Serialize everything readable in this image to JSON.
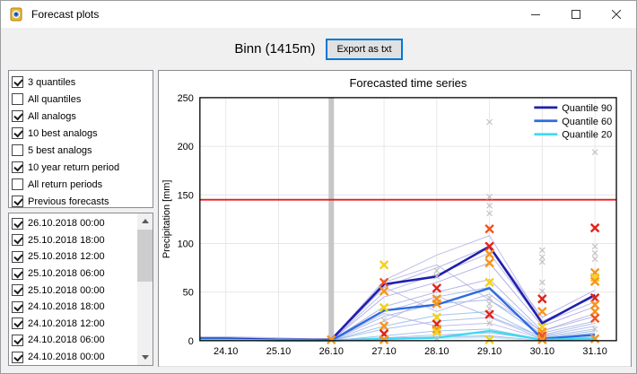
{
  "window": {
    "title": "Forecast plots"
  },
  "header": {
    "station": "Binn (1415m)",
    "export_label": "Export as txt"
  },
  "options": {
    "items": [
      {
        "label": "3 quantiles",
        "checked": true
      },
      {
        "label": "All quantiles",
        "checked": false
      },
      {
        "label": "All analogs",
        "checked": true
      },
      {
        "label": "10 best analogs",
        "checked": true
      },
      {
        "label": "5 best analogs",
        "checked": false
      },
      {
        "label": "10 year return period",
        "checked": true
      },
      {
        "label": "All return periods",
        "checked": false
      },
      {
        "label": "Previous forecasts",
        "checked": true
      }
    ]
  },
  "forecast_dates": {
    "items": [
      {
        "label": "26.10.2018 00:00",
        "checked": true
      },
      {
        "label": "25.10.2018 18:00",
        "checked": true
      },
      {
        "label": "25.10.2018 12:00",
        "checked": true
      },
      {
        "label": "25.10.2018 06:00",
        "checked": true
      },
      {
        "label": "25.10.2018 00:00",
        "checked": true
      },
      {
        "label": "24.10.2018 18:00",
        "checked": true
      },
      {
        "label": "24.10.2018 12:00",
        "checked": true
      },
      {
        "label": "24.10.2018 06:00",
        "checked": true
      },
      {
        "label": "24.10.2018 00:00",
        "checked": true
      }
    ]
  },
  "chart_data": {
    "type": "line",
    "title": "Forecasted time series",
    "ylabel": "Precipitation [mm]",
    "ylim": [
      0,
      250
    ],
    "yticks": [
      0,
      50,
      100,
      150,
      200,
      250
    ],
    "categories": [
      "24.10",
      "25.10",
      "26.10",
      "27.10",
      "28.10",
      "29.10",
      "30.10",
      "31.10"
    ],
    "grid": true,
    "legend_position": "upper right",
    "now_bar": {
      "category": "26.10",
      "index": 2,
      "color": "#c6c6c6"
    },
    "return_period_line": {
      "label": "10 year return period",
      "value": 145,
      "color": "#e81c1c"
    },
    "series": [
      {
        "name": "Quantile 90",
        "color": "#1f1fae",
        "width": 2.6,
        "values": [
          2,
          1,
          1,
          58,
          66,
          97,
          18,
          47
        ]
      },
      {
        "name": "Quantile 60",
        "color": "#2e6be0",
        "width": 2.4,
        "values": [
          1,
          1,
          0,
          31,
          37,
          54,
          2,
          6
        ]
      },
      {
        "name": "Quantile 20",
        "color": "#3fd9f0",
        "width": 2.4,
        "values": [
          1,
          0,
          0,
          2,
          3,
          10,
          1,
          2
        ]
      }
    ],
    "analog_lines": [
      {
        "color": "#b3b1e6",
        "values": [
          3,
          2,
          1,
          62,
          88,
          108,
          20,
          45
        ]
      },
      {
        "color": "#aaa9e2",
        "values": [
          2,
          1,
          1,
          55,
          75,
          97,
          24,
          52
        ]
      },
      {
        "color": "#b3b1e6",
        "values": [
          2,
          1,
          0,
          50,
          68,
          90,
          18,
          40
        ]
      },
      {
        "color": "#a5a7e0",
        "values": [
          1,
          1,
          0,
          45,
          60,
          80,
          15,
          35
        ]
      },
      {
        "color": "#b3b1e6",
        "values": [
          2,
          1,
          0,
          60,
          78,
          42,
          10,
          28
        ]
      },
      {
        "color": "#aaa9e2",
        "values": [
          1,
          0,
          0,
          35,
          50,
          63,
          10,
          25
        ]
      },
      {
        "color": "#9fb6ea",
        "values": [
          1,
          1,
          0,
          30,
          45,
          55,
          8,
          20
        ]
      },
      {
        "color": "#b3b1e6",
        "values": [
          1,
          0,
          0,
          55,
          30,
          48,
          6,
          18
        ]
      },
      {
        "color": "#9fb6ea",
        "values": [
          0,
          0,
          0,
          25,
          38,
          42,
          5,
          15
        ]
      },
      {
        "color": "#b3b1e6",
        "values": [
          1,
          0,
          0,
          20,
          46,
          25,
          4,
          12
        ]
      },
      {
        "color": "#8fbce8",
        "values": [
          0,
          0,
          0,
          15,
          26,
          30,
          3,
          10
        ]
      },
      {
        "color": "#9fb6ea",
        "values": [
          0,
          0,
          0,
          12,
          20,
          24,
          2,
          8
        ]
      },
      {
        "color": "#b3b1e6",
        "values": [
          0,
          0,
          0,
          28,
          15,
          18,
          2,
          6
        ]
      },
      {
        "color": "#8fbce8",
        "values": [
          0,
          0,
          0,
          5,
          10,
          12,
          1,
          4
        ]
      },
      {
        "color": "#b3b1e6",
        "values": [
          4,
          3,
          1,
          3,
          6,
          8,
          1,
          3
        ]
      },
      {
        "color": "#a5a7e0",
        "values": [
          3,
          2,
          1,
          2,
          4,
          5,
          0,
          2
        ]
      },
      {
        "color": "#a9e3f1",
        "values": [
          0,
          0,
          0,
          2,
          3,
          4,
          0,
          1
        ]
      },
      {
        "color": "#bfe9f5",
        "values": [
          0,
          0,
          0,
          1,
          2,
          3,
          0,
          1
        ]
      }
    ],
    "marker_colors": {
      "red": "#e32119",
      "redorange": "#f4511e",
      "orange": "#f7941d",
      "yellow": "#f2d118",
      "gray": "#c0c0c0"
    },
    "markers": [
      {
        "x": 2,
        "v": 1,
        "c": "orange"
      },
      {
        "x": 3,
        "v": 78,
        "c": "yellow"
      },
      {
        "x": 3,
        "v": 60,
        "c": "redorange"
      },
      {
        "x": 3,
        "v": 51,
        "c": "orange"
      },
      {
        "x": 3,
        "v": 34,
        "c": "yellow"
      },
      {
        "x": 3,
        "v": 21,
        "c": "gray"
      },
      {
        "x": 3,
        "v": 15,
        "c": "orange"
      },
      {
        "x": 3,
        "v": 7,
        "c": "red"
      },
      {
        "x": 3,
        "v": 1,
        "c": "orange"
      },
      {
        "x": 4,
        "v": 72,
        "c": "gray"
      },
      {
        "x": 4,
        "v": 66,
        "c": "gray"
      },
      {
        "x": 4,
        "v": 54,
        "c": "red"
      },
      {
        "x": 4,
        "v": 43,
        "c": "orange"
      },
      {
        "x": 4,
        "v": 38,
        "c": "orange"
      },
      {
        "x": 4,
        "v": 24,
        "c": "yellow"
      },
      {
        "x": 4,
        "v": 17,
        "c": "red"
      },
      {
        "x": 4,
        "v": 12,
        "c": "orange"
      },
      {
        "x": 4,
        "v": 9,
        "c": "yellow"
      },
      {
        "x": 4,
        "v": 2,
        "c": "gray"
      },
      {
        "x": 5,
        "v": 225,
        "c": "gray"
      },
      {
        "x": 5,
        "v": 148,
        "c": "gray"
      },
      {
        "x": 5,
        "v": 139,
        "c": "gray"
      },
      {
        "x": 5,
        "v": 131,
        "c": "gray"
      },
      {
        "x": 5,
        "v": 115,
        "c": "redorange"
      },
      {
        "x": 5,
        "v": 97,
        "c": "red"
      },
      {
        "x": 5,
        "v": 89,
        "c": "orange"
      },
      {
        "x": 5,
        "v": 80,
        "c": "orange"
      },
      {
        "x": 5,
        "v": 60,
        "c": "yellow"
      },
      {
        "x": 5,
        "v": 44,
        "c": "gray"
      },
      {
        "x": 5,
        "v": 38,
        "c": "gray"
      },
      {
        "x": 5,
        "v": 33,
        "c": "gray"
      },
      {
        "x": 5,
        "v": 27,
        "c": "red"
      },
      {
        "x": 5,
        "v": 18,
        "c": "gray"
      },
      {
        "x": 5,
        "v": 1,
        "c": "yellow"
      },
      {
        "x": 6,
        "v": 93,
        "c": "gray"
      },
      {
        "x": 6,
        "v": 86,
        "c": "gray"
      },
      {
        "x": 6,
        "v": 81,
        "c": "gray"
      },
      {
        "x": 6,
        "v": 60,
        "c": "gray"
      },
      {
        "x": 6,
        "v": 51,
        "c": "gray"
      },
      {
        "x": 6,
        "v": 43,
        "c": "red"
      },
      {
        "x": 6,
        "v": 30,
        "c": "orange"
      },
      {
        "x": 6,
        "v": 14,
        "c": "yellow"
      },
      {
        "x": 6,
        "v": 9,
        "c": "orange"
      },
      {
        "x": 6,
        "v": 5,
        "c": "redorange"
      },
      {
        "x": 6,
        "v": 1,
        "c": "orange"
      },
      {
        "x": 7,
        "v": 194,
        "c": "gray"
      },
      {
        "x": 7,
        "v": 116,
        "c": "red"
      },
      {
        "x": 7,
        "v": 97,
        "c": "gray"
      },
      {
        "x": 7,
        "v": 90,
        "c": "gray"
      },
      {
        "x": 7,
        "v": 84,
        "c": "gray"
      },
      {
        "x": 7,
        "v": 70,
        "c": "orange"
      },
      {
        "x": 7,
        "v": 65,
        "c": "yellow"
      },
      {
        "x": 7,
        "v": 61,
        "c": "orange"
      },
      {
        "x": 7,
        "v": 44,
        "c": "red"
      },
      {
        "x": 7,
        "v": 37,
        "c": "orange"
      },
      {
        "x": 7,
        "v": 30,
        "c": "orange"
      },
      {
        "x": 7,
        "v": 23,
        "c": "redorange"
      },
      {
        "x": 7,
        "v": 12,
        "c": "gray"
      },
      {
        "x": 7,
        "v": 2,
        "c": "orange"
      }
    ]
  }
}
